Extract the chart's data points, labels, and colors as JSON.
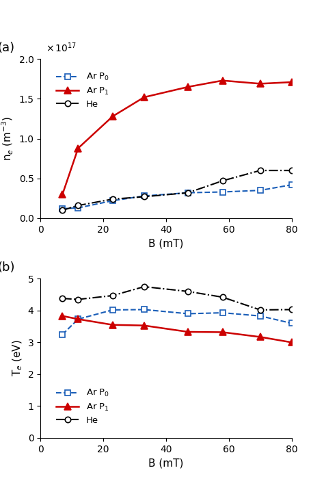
{
  "panel_a": {
    "title": "(a)",
    "xlabel": "B (mT)",
    "ylabel": "n$_e$ (m$^{-3}$)",
    "scale_label": "x 10$^{17}$",
    "ylim": [
      0,
      2.0
    ],
    "xlim": [
      0,
      80
    ],
    "xticks": [
      0,
      20,
      40,
      60,
      80
    ],
    "yticks": [
      0,
      0.5,
      1.0,
      1.5,
      2.0
    ],
    "series": {
      "ArP0": {
        "x": [
          7,
          12,
          23,
          33,
          47,
          58,
          70,
          80
        ],
        "y": [
          0.12,
          0.13,
          0.22,
          0.28,
          0.32,
          0.33,
          0.35,
          0.42
        ],
        "color": "#1a5eb8",
        "linestyle": "--",
        "marker": "s",
        "markerfacecolor": "white",
        "markeredgecolor": "#1a5eb8",
        "label": "Ar P$_0$",
        "linewidth": 1.5,
        "markersize": 6
      },
      "ArP1": {
        "x": [
          7,
          12,
          23,
          33,
          47,
          58,
          70,
          80
        ],
        "y": [
          0.3,
          0.88,
          1.28,
          1.52,
          1.65,
          1.73,
          1.69,
          1.71
        ],
        "color": "#cc0000",
        "linestyle": "-",
        "marker": "^",
        "markerfacecolor": "#cc0000",
        "markeredgecolor": "#cc0000",
        "label": "Ar P$_1$",
        "linewidth": 1.8,
        "markersize": 7
      },
      "He": {
        "x": [
          7,
          12,
          23,
          33,
          47,
          58,
          70,
          80
        ],
        "y": [
          0.1,
          0.16,
          0.24,
          0.27,
          0.32,
          0.47,
          0.6,
          0.6
        ],
        "color": "#000000",
        "linestyle": "-.",
        "marker": "o",
        "markerfacecolor": "white",
        "markeredgecolor": "#000000",
        "label": "He",
        "linewidth": 1.5,
        "markersize": 6
      }
    }
  },
  "panel_b": {
    "title": "(b)",
    "xlabel": "B (mT)",
    "ylabel": "T$_e$ (eV)",
    "ylim": [
      0,
      5
    ],
    "xlim": [
      0,
      80
    ],
    "xticks": [
      0,
      20,
      40,
      60,
      80
    ],
    "yticks": [
      0,
      1,
      2,
      3,
      4,
      5
    ],
    "series": {
      "ArP0": {
        "x": [
          7,
          12,
          23,
          33,
          47,
          58,
          70,
          80
        ],
        "y": [
          3.25,
          3.73,
          4.02,
          4.03,
          3.9,
          3.93,
          3.83,
          3.6
        ],
        "color": "#1a5eb8",
        "linestyle": "--",
        "marker": "s",
        "markerfacecolor": "white",
        "markeredgecolor": "#1a5eb8",
        "label": "Ar P$_0$",
        "linewidth": 1.5,
        "markersize": 6
      },
      "ArP1": {
        "x": [
          7,
          12,
          23,
          33,
          47,
          58,
          70,
          80
        ],
        "y": [
          3.83,
          3.73,
          3.55,
          3.53,
          3.33,
          3.32,
          3.17,
          3.0
        ],
        "color": "#cc0000",
        "linestyle": "-",
        "marker": "^",
        "markerfacecolor": "#cc0000",
        "markeredgecolor": "#cc0000",
        "label": "Ar P$_1$",
        "linewidth": 1.8,
        "markersize": 7
      },
      "He": {
        "x": [
          7,
          12,
          23,
          33,
          47,
          58,
          70,
          80
        ],
        "y": [
          4.38,
          4.35,
          4.47,
          4.75,
          4.6,
          4.42,
          4.02,
          4.03
        ],
        "color": "#000000",
        "linestyle": "-.",
        "marker": "o",
        "markerfacecolor": "white",
        "markeredgecolor": "#000000",
        "label": "He",
        "linewidth": 1.5,
        "markersize": 6
      }
    }
  },
  "fig_bg": "#ffffff"
}
